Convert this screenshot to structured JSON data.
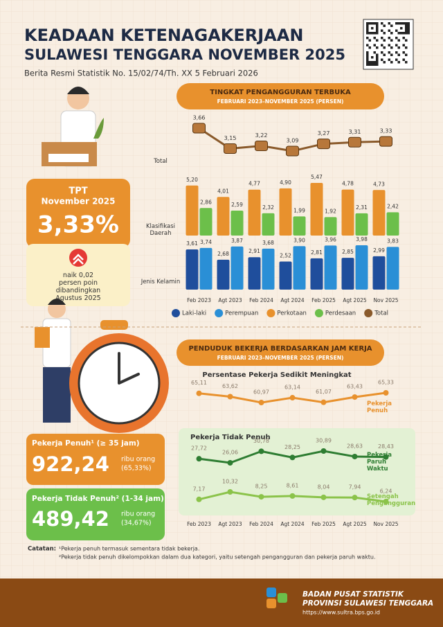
{
  "header": {
    "title_line1": "KEADAAN KETENAGAKERJAAN",
    "title_line2": "SULAWESI TENGGARA NOVEMBER 2025",
    "subtitle": "Berita Resmi Statistik No. 15/02/74/Th. XX 5 Februari 2026"
  },
  "tpt": {
    "label_line1": "TPT",
    "label_line2": "November 2025",
    "value": "3,33%",
    "note": [
      "naik 0,02",
      "persen poin",
      "dibandingkan",
      "Agustus 2025"
    ]
  },
  "workers": [
    {
      "title": "Pekerja Penuh¹ (≥ 35 jam)",
      "value": "922,24",
      "unit": "ribu orang",
      "share": "(65,33%)"
    },
    {
      "title": "Pekerja Tidak Penuh² (1-34 jam)",
      "value": "489,42",
      "unit": "ribu orang",
      "share": "(34,67%)"
    }
  ],
  "chart_data": [
    {
      "type": "line",
      "title": "TINGKAT PENGANGGURAN TERBUKA",
      "subtitle": "FEBRUARI 2023–NOVEMBER 2025 (PERSEN)",
      "row_label": "Total",
      "series": [
        {
          "name": "Total",
          "color": "#8a5a2b",
          "values": [
            3.66,
            3.15,
            3.22,
            3.09,
            3.27,
            3.31,
            3.33
          ],
          "value_labels": [
            "3,66",
            "3,15",
            "3,22",
            "3,09",
            "3,27",
            "3,31",
            "3,33"
          ]
        }
      ]
    },
    {
      "type": "bar",
      "row_label": "Klasifikasi Daerah",
      "series": [
        {
          "name": "Perkotaan",
          "color": "#e8912d",
          "values": [
            5.2,
            4.01,
            4.77,
            4.9,
            5.47,
            4.78,
            4.73
          ],
          "value_labels": [
            "5,20",
            "4,01",
            "4,77",
            "4,90",
            "5,47",
            "4,78",
            "4,73"
          ]
        },
        {
          "name": "Perdesaan",
          "color": "#6cbf4a",
          "values": [
            2.86,
            2.59,
            2.32,
            1.99,
            1.92,
            2.31,
            2.42
          ],
          "value_labels": [
            "2,86",
            "2,59",
            "2,32",
            "1,99",
            "1,92",
            "2,31",
            "2,42"
          ]
        }
      ]
    },
    {
      "type": "bar",
      "row_label": "Jenis Kelamin",
      "categories": [
        "Feb 2023",
        "Agt 2023",
        "Feb 2024",
        "Agt 2024",
        "Feb 2025",
        "Agt 2025",
        "Nov 2025"
      ],
      "series": [
        {
          "name": "Laki-laki",
          "color": "#1f4e9c",
          "values": [
            3.61,
            2.68,
            2.91,
            2.52,
            2.81,
            2.85,
            2.99
          ],
          "value_labels": [
            "3,61",
            "2,68",
            "2,91",
            "2,52",
            "2,81",
            "2,85",
            "2,99"
          ]
        },
        {
          "name": "Perempuan",
          "color": "#2a8fd6",
          "values": [
            3.74,
            3.87,
            3.68,
            3.9,
            3.96,
            3.98,
            3.83
          ],
          "value_labels": [
            "3,74",
            "3,87",
            "3,68",
            "3,90",
            "3,96",
            "3,98",
            "3,83"
          ]
        }
      ]
    },
    {
      "type": "line",
      "title": "PENDUDUK BEKERJA BERDASARKAN JAM KERJA",
      "subtitle": "FEBRUARI 2023–NOVEMBER 2025 (PERSEN)",
      "panel_title": "Persentase Pekerja Sedikit Meningkat",
      "series": [
        {
          "name": "Pekerja Penuh",
          "color": "#e8912d",
          "values": [
            65.11,
            63.62,
            60.97,
            63.14,
            61.07,
            63.43,
            65.33
          ],
          "value_labels": [
            "65,11",
            "63,62",
            "60,97",
            "63,14",
            "61,07",
            "63,43",
            "65,33"
          ]
        }
      ]
    },
    {
      "type": "line",
      "panel_title": "Pekerja Tidak Penuh",
      "categories": [
        "Feb 2023",
        "Agt 2023",
        "Feb 2024",
        "Agt 2024",
        "Feb 2025",
        "Agt 2025",
        "Nov 2025"
      ],
      "series": [
        {
          "name": "Pekerja Paruh Waktu",
          "color": "#2e7d32",
          "values": [
            27.72,
            26.06,
            30.78,
            28.25,
            30.89,
            28.63,
            28.43
          ],
          "value_labels": [
            "27,72",
            "26,06",
            "30,78",
            "28,25",
            "30,89",
            "28,63",
            "28,43"
          ]
        },
        {
          "name": "Setengah Pengangguran",
          "color": "#8bc34a",
          "values": [
            7.17,
            10.32,
            8.25,
            8.61,
            8.04,
            7.94,
            6.24
          ],
          "value_labels": [
            "7,17",
            "10,32",
            "8,25",
            "8,61",
            "8,04",
            "7,94",
            "6,24"
          ]
        }
      ]
    }
  ],
  "notes": {
    "label": "Catatan:",
    "items": [
      "¹Pekerja penuh termasuk sementara tidak bekerja.",
      "²Pekerja tidak penuh dikelompokkan dalam dua kategori, yaitu setengah pengangguran dan pekerja paruh waktu."
    ]
  },
  "footer": {
    "org_line1": "BADAN PUSAT STATISTIK",
    "org_line2": "PROVINSI SULAWESI TENGGARA",
    "url": "https://www.sultra.bps.go.id"
  }
}
